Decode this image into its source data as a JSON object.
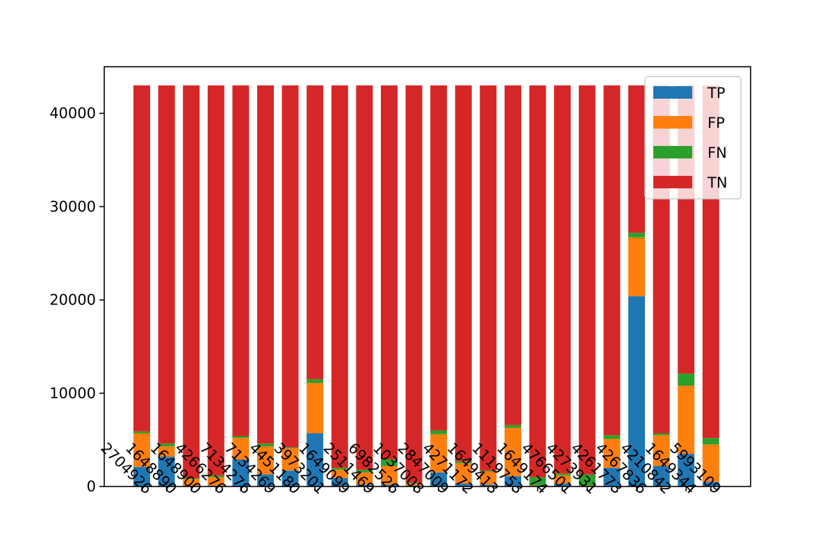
{
  "chart_data": {
    "type": "bar",
    "stacked": true,
    "title": "",
    "xlabel": "",
    "ylabel": "",
    "ylim": [
      0,
      45000
    ],
    "yticks": [
      0,
      10000,
      20000,
      30000,
      40000
    ],
    "legend_position": "top-right",
    "categories": [
      "2704926",
      "1648890",
      "1648900",
      "4266276",
      "7134276",
      "7134269",
      "4451180",
      "3973201",
      "1649099",
      "2511469",
      "6982526",
      "1037008",
      "2847009",
      "4271172",
      "1649413",
      "1119753",
      "1649174",
      "4766501",
      "4273931",
      "4261773",
      "4267836",
      "4210842",
      "1649344",
      "5993109"
    ],
    "series": [
      {
        "name": "TP",
        "color": "#1f77b4",
        "values": [
          2100,
          3200,
          100,
          100,
          2900,
          1300,
          1700,
          5700,
          900,
          200,
          200,
          100,
          1500,
          300,
          200,
          1100,
          0,
          300,
          0,
          2000,
          20400,
          2200,
          3500,
          500
        ]
      },
      {
        "name": "FP",
        "color": "#ff7f0e",
        "values": [
          3600,
          1100,
          700,
          900,
          2300,
          3000,
          2400,
          5400,
          900,
          1300,
          2000,
          200,
          4100,
          2200,
          1400,
          5200,
          100,
          900,
          100,
          3100,
          6300,
          3300,
          7300,
          4000
        ]
      },
      {
        "name": "FN",
        "color": "#2ca02c",
        "values": [
          200,
          300,
          100,
          200,
          200,
          300,
          100,
          400,
          200,
          300,
          700,
          100,
          400,
          200,
          100,
          300,
          900,
          200,
          1200,
          400,
          500,
          200,
          1300,
          700
        ]
      },
      {
        "name": "TN",
        "color": "#d62728",
        "values": [
          37100,
          38400,
          42100,
          41800,
          37600,
          38400,
          38800,
          31500,
          41000,
          41200,
          40100,
          42600,
          37000,
          40300,
          41300,
          36400,
          42000,
          41600,
          41700,
          37500,
          15800,
          37300,
          30900,
          37800
        ]
      }
    ]
  }
}
